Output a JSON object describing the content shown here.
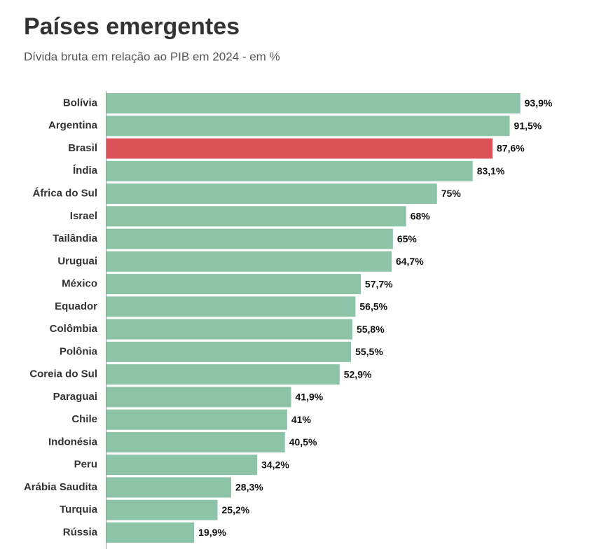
{
  "chart_data": {
    "type": "bar",
    "orientation": "horizontal",
    "title": "Países emergentes",
    "subtitle": "Dívida bruta em relação ao PIB em 2024 - em %",
    "categories": [
      "Bolívia",
      "Argentina",
      "Brasil",
      "Índia",
      "África do Sul",
      "Israel",
      "Tailândia",
      "Uruguai",
      "México",
      "Equador",
      "Colômbia",
      "Polônia",
      "Coreia do Sul",
      "Paraguai",
      "Chile",
      "Indonésia",
      "Peru",
      "Arábia Saudita",
      "Turquia",
      "Rússia"
    ],
    "values": [
      93.9,
      91.5,
      87.6,
      83.1,
      75,
      68,
      65,
      64.7,
      57.7,
      56.5,
      55.8,
      55.5,
      52.9,
      41.9,
      41,
      40.5,
      34.2,
      28.3,
      25.2,
      19.9
    ],
    "value_labels": [
      "93,9%",
      "91,5%",
      "87,6%",
      "83,1%",
      "75%",
      "68%",
      "65%",
      "64,7%",
      "57,7%",
      "56,5%",
      "55,8%",
      "55,5%",
      "52,9%",
      "41,9%",
      "41%",
      "40,5%",
      "34,2%",
      "28,3%",
      "25,2%",
      "19,9%"
    ],
    "colors": [
      "#8dc3a7",
      "#8dc3a7",
      "#dc5256",
      "#8dc3a7",
      "#8dc3a7",
      "#8dc3a7",
      "#8dc3a7",
      "#8dc3a7",
      "#8dc3a7",
      "#8dc3a7",
      "#8dc3a7",
      "#8dc3a7",
      "#8dc3a7",
      "#8dc3a7",
      "#8dc3a7",
      "#8dc3a7",
      "#8dc3a7",
      "#8dc3a7",
      "#8dc3a7",
      "#8dc3a7"
    ],
    "xlim": [
      0,
      100
    ]
  }
}
